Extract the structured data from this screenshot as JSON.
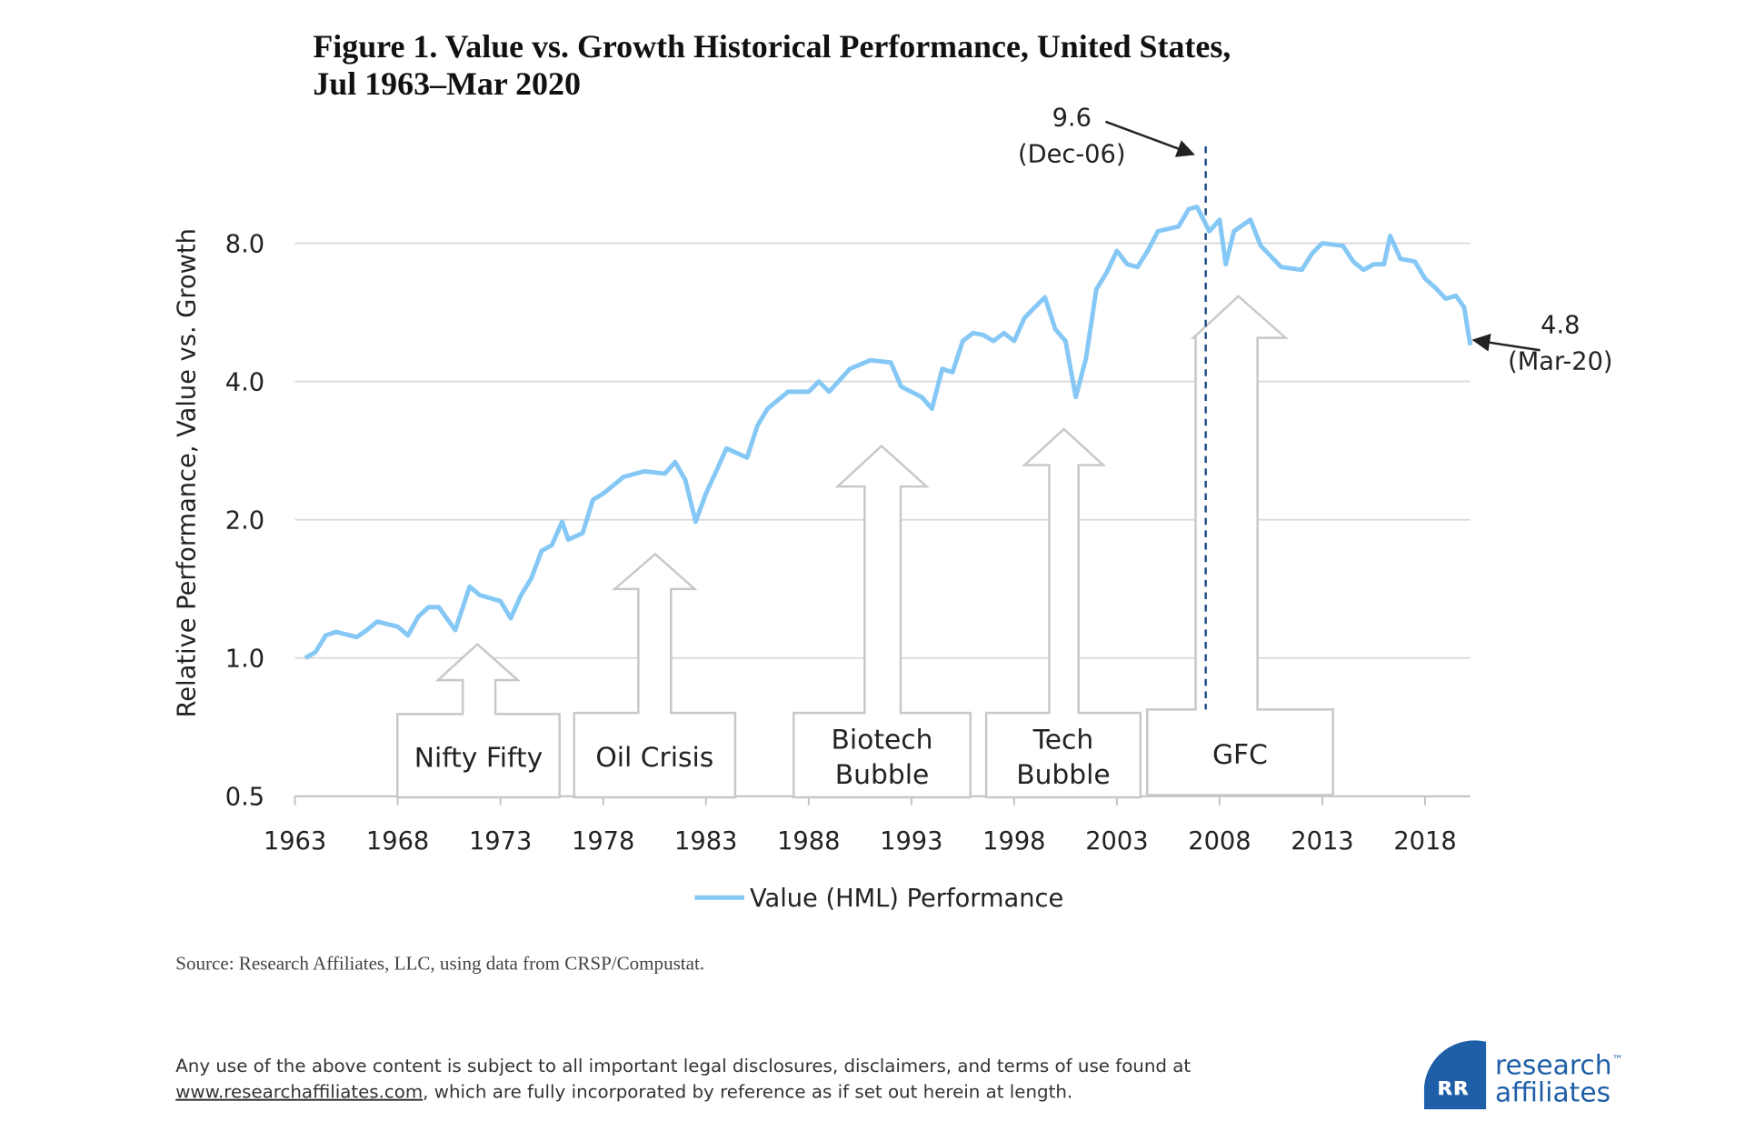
{
  "chart_data": {
    "type": "line",
    "title": [
      "Figure 1. Value vs. Growth Historical Performance, United States,",
      "Jul 1963–Mar 2020"
    ],
    "y_label": "Relative Performance, Value vs. Growth",
    "log_scale": true,
    "grid": true,
    "xlim": [
      1963,
      2020.2
    ],
    "xticks": [
      1963,
      1968,
      1973,
      1978,
      1983,
      1988,
      1993,
      1998,
      2003,
      2008,
      2013,
      2018
    ],
    "ylim": [
      0.5,
      13
    ],
    "yticks": [
      0.5,
      {
        "value": 1,
        "label": "1.0"
      },
      {
        "value": 2,
        "label": "2.0"
      },
      {
        "value": 4,
        "label": "4.0"
      },
      {
        "value": 8,
        "label": "8.0"
      }
    ],
    "series": [
      {
        "name": "Value (HML) Performance",
        "color": "#86c8f5",
        "x": [
          1963.5,
          1964,
          1964.5,
          1965,
          1966,
          1966.5,
          1967,
          1968,
          1968.5,
          1969,
          1969.5,
          1970,
          1970.8,
          1971.5,
          1972,
          1973,
          1973.5,
          1974,
          1974.5,
          1975,
          1975.5,
          1976,
          1976.3,
          1977,
          1977.5,
          1978,
          1979,
          1980,
          1981,
          1981.5,
          1982,
          1982.5,
          1983,
          1983.5,
          1984,
          1985,
          1985.5,
          1986,
          1987,
          1988,
          1988.5,
          1989,
          1990,
          1991,
          1992,
          1992.5,
          1993.5,
          1994,
          1994.5,
          1995,
          1995.5,
          1996,
          1996.5,
          1997,
          1997.5,
          1998,
          1998.5,
          1999,
          1999.5,
          2000,
          2000.5,
          2001,
          2001.5,
          2002,
          2002.5,
          2003,
          2003.5,
          2004,
          2004.5,
          2005,
          2006,
          2006.5,
          2006.9,
          2007.5,
          2008,
          2008.3,
          2008.7,
          2009.5,
          2010,
          2011,
          2012,
          2012.5,
          2013,
          2014,
          2014.5,
          2015,
          2015.5,
          2016,
          2016.3,
          2016.8,
          2017.5,
          2018,
          2018.5,
          2019,
          2019.5,
          2019.9,
          2020.2
        ],
        "values": [
          1.0,
          1.03,
          1.12,
          1.14,
          1.11,
          1.15,
          1.2,
          1.17,
          1.12,
          1.23,
          1.29,
          1.29,
          1.15,
          1.43,
          1.37,
          1.33,
          1.22,
          1.37,
          1.49,
          1.71,
          1.76,
          1.98,
          1.81,
          1.87,
          2.21,
          2.28,
          2.48,
          2.55,
          2.52,
          2.67,
          2.44,
          1.98,
          2.28,
          2.55,
          2.86,
          2.73,
          3.2,
          3.49,
          3.8,
          3.8,
          4.0,
          3.8,
          4.26,
          4.45,
          4.4,
          3.9,
          3.7,
          3.49,
          4.26,
          4.19,
          4.9,
          5.1,
          5.05,
          4.9,
          5.1,
          4.9,
          5.5,
          5.8,
          6.1,
          5.2,
          4.9,
          3.7,
          4.5,
          6.35,
          6.9,
          7.7,
          7.2,
          7.1,
          7.7,
          8.5,
          8.7,
          9.5,
          9.6,
          8.5,
          9.0,
          7.2,
          8.5,
          9.0,
          7.9,
          7.1,
          7.0,
          7.6,
          8.0,
          7.9,
          7.3,
          7.0,
          7.2,
          7.2,
          8.3,
          7.4,
          7.3,
          6.7,
          6.4,
          6.06,
          6.15,
          5.8,
          4.8
        ]
      }
    ],
    "annotations": [
      {
        "value": 9.6,
        "text": "(Dec-06)"
      },
      {
        "value": 4.8,
        "text": "(Mar-20)"
      }
    ],
    "events": [
      [
        "Nifty Fifty"
      ],
      [
        "Oil Crisis"
      ],
      [
        "Biotech",
        "Bubble"
      ],
      [
        "Tech",
        "Bubble"
      ],
      [
        "GFC"
      ]
    ]
  },
  "source": "Source: Research Affiliates, LLC, using data from CRSP/Compustat.",
  "disclaimer": {
    "line1": "Any use of the above content is subject to all important legal disclosures, disclaimers, and terms of use found at",
    "link": "www.researchaffiliates.com",
    "line2_rest": ", which are fully incorporated by reference as if set out herein at length."
  },
  "logo": {
    "line1": "research",
    "tm": "™",
    "line2": "affiliates"
  }
}
